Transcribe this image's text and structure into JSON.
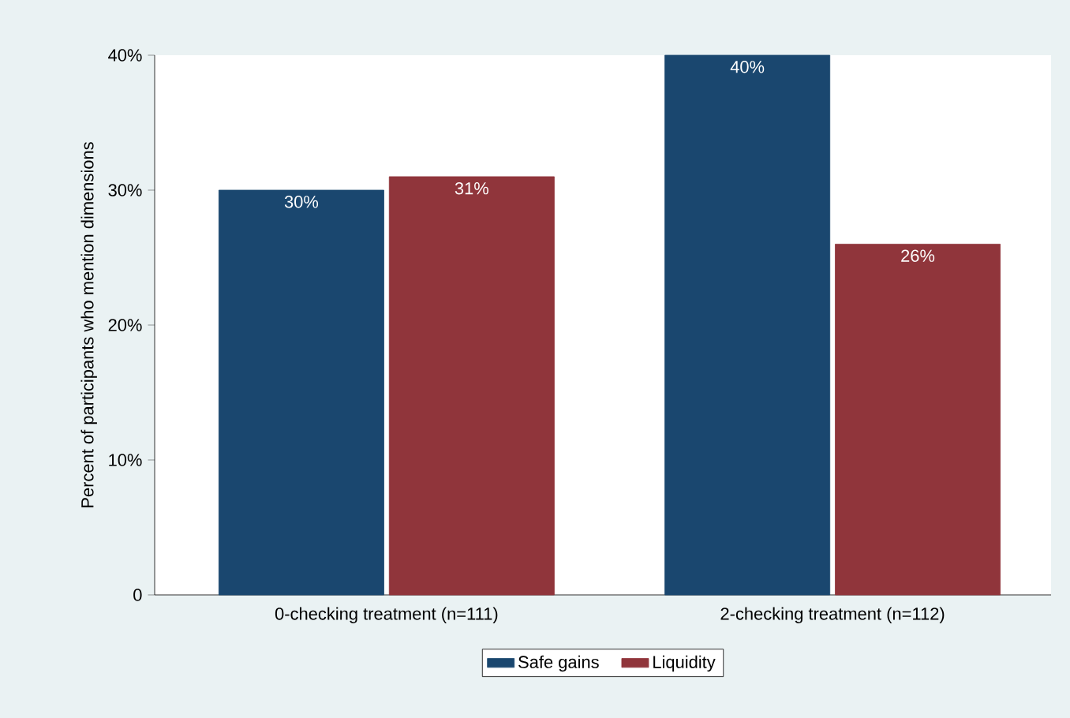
{
  "chart_data": {
    "type": "bar",
    "ylabel": "Percent of participants who mention dimensions",
    "categories": [
      "0-checking treatment (n=111)",
      "2-checking treatment (n=112)"
    ],
    "series": [
      {
        "name": "Safe gains",
        "color": "#1a476f",
        "values": [
          30,
          40
        ],
        "value_labels": [
          "30%",
          "40%"
        ]
      },
      {
        "name": "Liquidity",
        "color": "#90353b",
        "values": [
          31,
          26
        ],
        "value_labels": [
          "31%",
          "26%"
        ]
      }
    ],
    "ylim": [
      0,
      40
    ],
    "yticks": [
      {
        "value": 0,
        "label": "0"
      },
      {
        "value": 10,
        "label": "10%"
      },
      {
        "value": 20,
        "label": "20%"
      },
      {
        "value": 30,
        "label": "30%"
      },
      {
        "value": 40,
        "label": "40%"
      }
    ],
    "legend": "bottom"
  }
}
